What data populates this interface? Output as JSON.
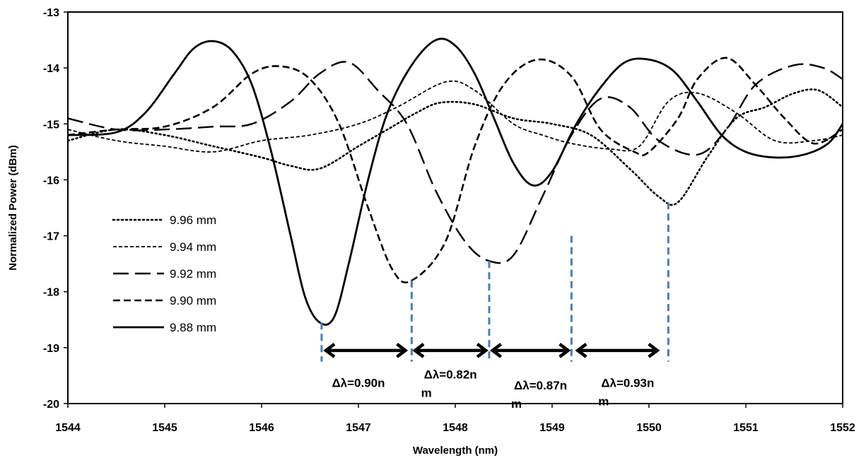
{
  "chart_data": {
    "type": "line",
    "title": "",
    "xlabel": "Wavelength (nm)",
    "ylabel": "Normalized Power (dBm)",
    "xlim": [
      1544,
      1552
    ],
    "ylim": [
      -20,
      -13
    ],
    "x_ticks": [
      "1544",
      "1545",
      "1546",
      "1547",
      "1548",
      "1549",
      "1550",
      "1551",
      "1552"
    ],
    "y_ticks": [
      "-13",
      "-14",
      "-15",
      "-16",
      "-17",
      "-18",
      "-19",
      "-20"
    ],
    "grid": false,
    "legend_position": "left",
    "series": [
      {
        "name": "9.96 mm",
        "style": "dotted",
        "x": [
          1544.0,
          1544.5,
          1545.0,
          1545.5,
          1546.0,
          1546.3,
          1546.6,
          1547.0,
          1547.3,
          1547.6,
          1547.85,
          1548.2,
          1548.6,
          1549.0,
          1549.4,
          1549.8,
          1550.1,
          1550.3,
          1550.6,
          1550.9,
          1551.2,
          1551.5,
          1551.75,
          1552.0
        ],
        "y": [
          -15.3,
          -15.1,
          -15.2,
          -15.4,
          -15.6,
          -15.75,
          -15.8,
          -15.4,
          -15.1,
          -14.8,
          -14.62,
          -14.65,
          -14.9,
          -15.0,
          -15.2,
          -15.8,
          -16.3,
          -16.4,
          -15.6,
          -14.9,
          -14.7,
          -14.45,
          -14.4,
          -14.7
        ]
      },
      {
        "name": "9.94 mm",
        "style": "short-dash",
        "x": [
          1544.0,
          1544.5,
          1545.0,
          1545.5,
          1546.0,
          1546.5,
          1547.0,
          1547.4,
          1547.9,
          1548.2,
          1548.6,
          1548.9,
          1549.2,
          1549.6,
          1549.9,
          1550.2,
          1550.5,
          1550.9,
          1551.3,
          1551.7,
          1552.0
        ],
        "y": [
          -15.1,
          -15.3,
          -15.4,
          -15.5,
          -15.3,
          -15.2,
          -15.0,
          -14.7,
          -14.25,
          -14.4,
          -15.0,
          -15.2,
          -15.35,
          -15.45,
          -15.4,
          -14.6,
          -14.45,
          -14.8,
          -15.3,
          -15.3,
          -15.2
        ]
      },
      {
        "name": "9.92 mm",
        "style": "long-dash",
        "x": [
          1544.0,
          1544.5,
          1545.0,
          1545.5,
          1545.9,
          1546.3,
          1546.6,
          1546.9,
          1547.2,
          1547.5,
          1547.8,
          1548.1,
          1548.35,
          1548.6,
          1548.9,
          1549.2,
          1549.5,
          1549.8,
          1550.1,
          1550.5,
          1550.8,
          1551.1,
          1551.5,
          1551.8,
          1552.0
        ],
        "y": [
          -14.9,
          -15.1,
          -15.1,
          -15.05,
          -15.0,
          -14.6,
          -14.1,
          -13.9,
          -14.4,
          -15.0,
          -16.2,
          -17.1,
          -17.45,
          -17.35,
          -16.3,
          -15.2,
          -14.55,
          -14.7,
          -15.3,
          -15.55,
          -15.1,
          -14.3,
          -13.95,
          -14.0,
          -14.2
        ]
      },
      {
        "name": "9.90 mm",
        "style": "dash",
        "x": [
          1544.0,
          1544.5,
          1545.0,
          1545.5,
          1545.9,
          1546.2,
          1546.5,
          1546.8,
          1547.1,
          1547.35,
          1547.55,
          1547.9,
          1548.2,
          1548.5,
          1548.85,
          1549.2,
          1549.5,
          1549.85,
          1550.0,
          1550.3,
          1550.5,
          1550.8,
          1551.1,
          1551.4,
          1551.7,
          1552.0
        ],
        "y": [
          -15.2,
          -15.1,
          -15.05,
          -14.7,
          -14.1,
          -13.97,
          -14.2,
          -15.0,
          -16.5,
          -17.6,
          -17.8,
          -17.1,
          -15.4,
          -14.3,
          -13.85,
          -14.15,
          -15.1,
          -15.5,
          -15.5,
          -14.9,
          -14.2,
          -13.82,
          -14.3,
          -14.9,
          -15.35,
          -15.1
        ]
      },
      {
        "name": "9.88 mm",
        "style": "solid",
        "x": [
          1544.0,
          1544.5,
          1544.8,
          1545.1,
          1545.3,
          1545.5,
          1545.7,
          1545.9,
          1546.1,
          1546.3,
          1546.45,
          1546.6,
          1546.75,
          1546.9,
          1547.1,
          1547.3,
          1547.55,
          1547.8,
          1548.0,
          1548.2,
          1548.4,
          1548.6,
          1548.8,
          1549.0,
          1549.25,
          1549.5,
          1549.75,
          1550.0,
          1550.25,
          1550.5,
          1550.75,
          1551.0,
          1551.3,
          1551.6,
          1551.85,
          1552.0
        ],
        "y": [
          -15.2,
          -15.15,
          -14.8,
          -14.1,
          -13.65,
          -13.52,
          -13.7,
          -14.3,
          -15.5,
          -17.0,
          -18.1,
          -18.55,
          -18.45,
          -17.5,
          -16.0,
          -14.8,
          -13.95,
          -13.5,
          -13.6,
          -14.1,
          -14.9,
          -15.7,
          -16.1,
          -15.85,
          -15.0,
          -14.35,
          -13.9,
          -13.85,
          -14.05,
          -14.6,
          -15.2,
          -15.5,
          -15.6,
          -15.55,
          -15.35,
          -15.0
        ]
      }
    ],
    "annotations": {
      "markers": [
        {
          "x": 1546.62,
          "y_top": -18.55
        },
        {
          "x": 1547.55,
          "y_top": -17.8
        },
        {
          "x": 1548.35,
          "y_top": -17.45
        },
        {
          "x": 1549.2,
          "y_top": -17.0
        },
        {
          "x": 1550.2,
          "y_top": -16.4
        }
      ],
      "arrows": [
        {
          "x1": 1546.65,
          "x2": 1547.5,
          "y": -19.05
        },
        {
          "x1": 1547.57,
          "x2": 1548.33,
          "y": -19.05
        },
        {
          "x1": 1548.37,
          "x2": 1549.18,
          "y": -19.05
        },
        {
          "x1": 1549.25,
          "x2": 1550.1,
          "y": -19.05
        }
      ],
      "labels": [
        {
          "line1": "Δλ=0.90n",
          "line2": "",
          "x": 1547.0,
          "y": -19.7
        },
        {
          "line1": "Δλ=0.82n",
          "line2": "m",
          "x": 1547.95,
          "y": -19.55
        },
        {
          "line1": "Δλ=0.87n",
          "line2": "m",
          "x": 1548.88,
          "y": -19.75
        },
        {
          "line1": "Δλ=0.93n",
          "line2": "m",
          "x": 1549.78,
          "y": -19.7
        }
      ],
      "marker_color": "#4a7ebb"
    }
  }
}
